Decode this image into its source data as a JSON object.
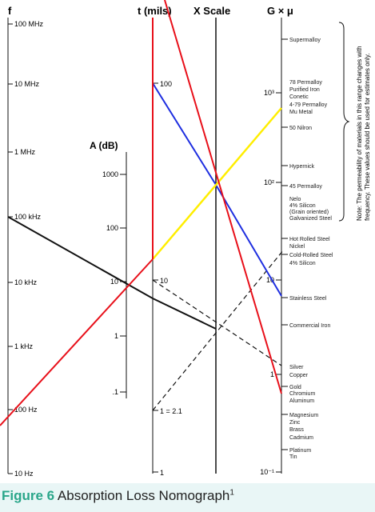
{
  "headers": {
    "f": "f",
    "t": "t (mils)",
    "x": "X Scale",
    "g": "G × μ",
    "a": "A (dB)"
  },
  "f_ticks": [
    "100 MHz",
    "10 MHz",
    "1 MHz",
    "100 kHz",
    "10 kHz",
    "1 kHz",
    "100 Hz",
    "10 Hz"
  ],
  "a_ticks": [
    "1000",
    "100",
    "10",
    "1",
    ".1"
  ],
  "t_ticks": [
    "100",
    "10",
    "1 = 2.1",
    "1"
  ],
  "g_ticks": [
    "10³",
    "10²",
    "10",
    "1",
    "10⁻¹"
  ],
  "materials_top": [
    "Supermalloy",
    "78 Permalloy",
    "Purified Iron",
    "Conetic",
    "4-79 Permalloy",
    "Mu Metal",
    "50 Nilron",
    "Hypernick",
    "45 Permalloy",
    "Nelo",
    "4% Silicon",
    "(Grain oriented)",
    "Galvanized Steel",
    "Hot Rolled Steel",
    "Nickel",
    "Cold-Rolled Steel",
    "4% Silicon",
    "Stainless Steel"
  ],
  "materials_bottom": [
    "Commercial Iron",
    "Silver",
    "Copper",
    "Gold",
    "Chromium",
    "Aluminum",
    "Magnesium",
    "Zinc",
    "Brass",
    "Cadmium",
    "Platinum",
    "Tin"
  ],
  "note": {
    "line1": "Note: The permeability of materials in this range changes with",
    "line2": "frequency. These values should be used for estimates only."
  },
  "caption": {
    "figure": "Figure 6",
    "title": "Absorption Loss Nomograph",
    "sup": "1"
  },
  "colors": {
    "red": "#e8101a",
    "blue": "#1f2fe0",
    "yellow": "#ffee00",
    "black": "#111111"
  }
}
